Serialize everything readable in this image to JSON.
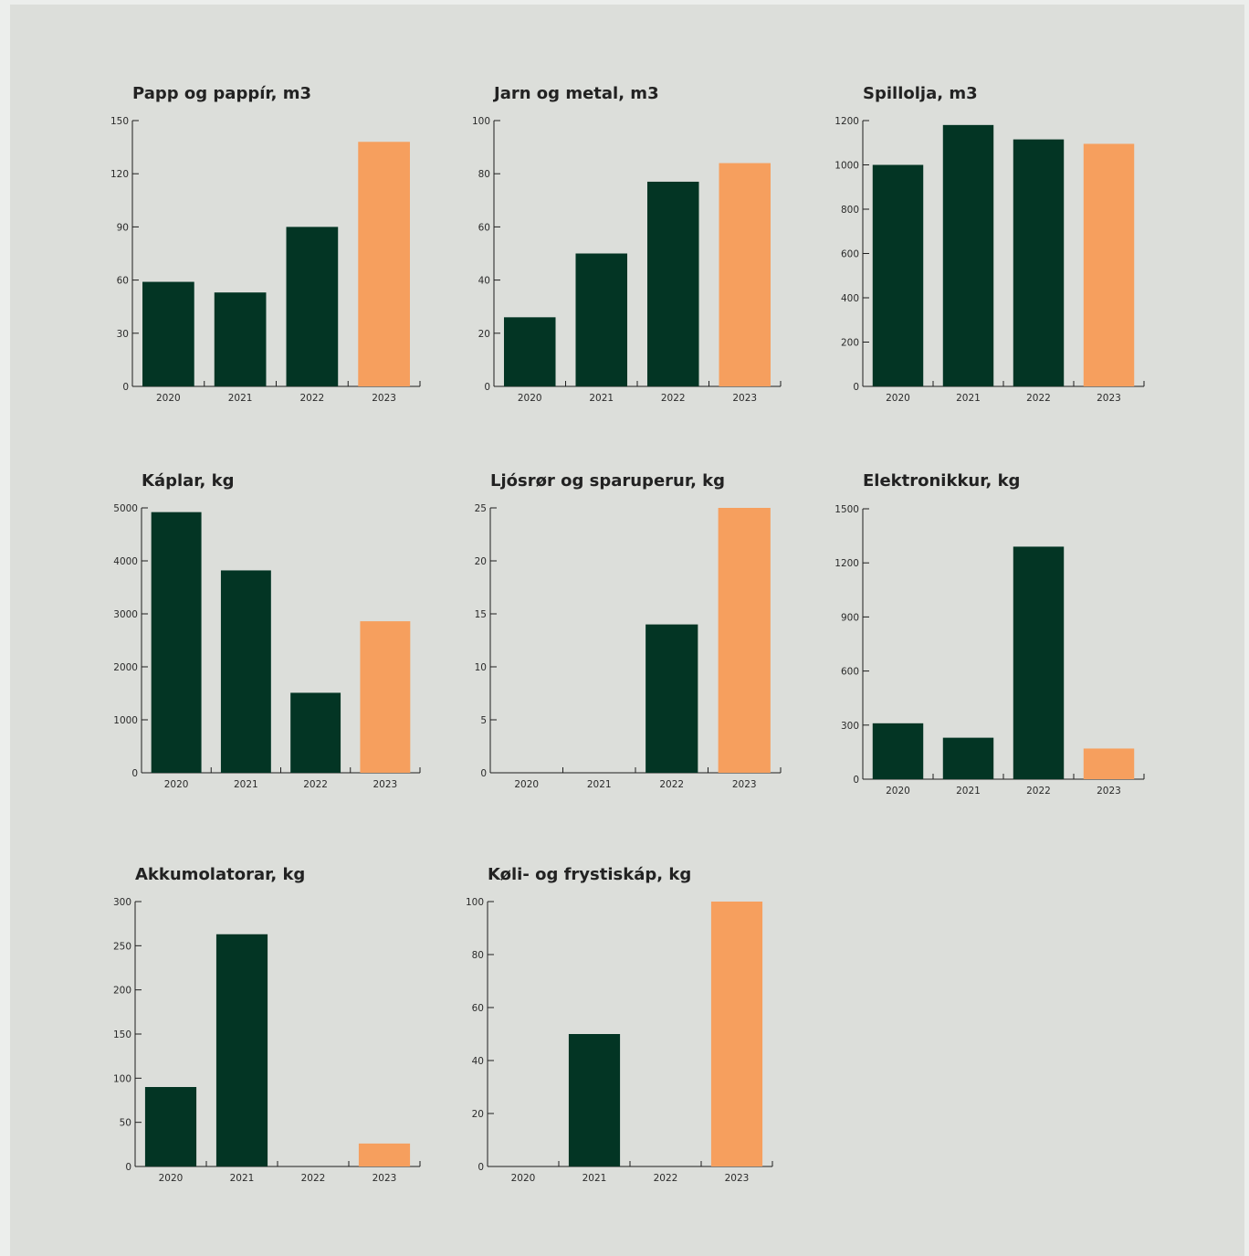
{
  "colors": {
    "bar": "#033524",
    "highlight": "#f69f5e",
    "axis": "#1e1e1e",
    "background": "#dcdeda"
  },
  "chart_data": [
    {
      "type": "bar",
      "title": "Papp og pappír, m3",
      "categories": [
        "2020",
        "2021",
        "2022",
        "2023"
      ],
      "values": [
        59,
        53,
        90,
        138
      ],
      "ylim": [
        0,
        150
      ],
      "yticks": [
        0,
        30,
        60,
        90,
        120,
        150
      ],
      "highlight": "2023"
    },
    {
      "type": "bar",
      "title": "Jarn og metal, m3",
      "categories": [
        "2020",
        "2021",
        "2022",
        "2023"
      ],
      "values": [
        26,
        50,
        77,
        84
      ],
      "ylim": [
        0,
        100
      ],
      "yticks": [
        0,
        20,
        40,
        60,
        80,
        100
      ],
      "highlight": "2023"
    },
    {
      "type": "bar",
      "title": "Spillolja, m3",
      "categories": [
        "2020",
        "2021",
        "2022",
        "2023"
      ],
      "values": [
        1000,
        1180,
        1115,
        1095
      ],
      "ylim": [
        0,
        1200
      ],
      "yticks": [
        0,
        200,
        400,
        600,
        800,
        1000,
        1200
      ],
      "highlight": "2023"
    },
    {
      "type": "bar",
      "title": "Káplar, kg",
      "categories": [
        "2020",
        "2021",
        "2022",
        "2023"
      ],
      "values": [
        4920,
        3820,
        1510,
        2860
      ],
      "ylim": [
        0,
        5000
      ],
      "yticks": [
        0,
        1000,
        2000,
        3000,
        4000,
        5000
      ],
      "highlight": "2023"
    },
    {
      "type": "bar",
      "title": "Ljósrør og sparuperur, kg",
      "categories": [
        "2020",
        "2021",
        "2022",
        "2023"
      ],
      "values": [
        0,
        0,
        14,
        25
      ],
      "ylim": [
        0,
        25
      ],
      "yticks": [
        0,
        5,
        10,
        15,
        20,
        25
      ],
      "highlight": "2023"
    },
    {
      "type": "bar",
      "title": "Elektronikkur, kg",
      "categories": [
        "2020",
        "2021",
        "2022",
        "2023"
      ],
      "values": [
        310,
        230,
        1290,
        170
      ],
      "ylim": [
        0,
        1500
      ],
      "yticks": [
        0,
        300,
        600,
        900,
        1200,
        1500
      ],
      "highlight": "2023"
    },
    {
      "type": "bar",
      "title": "Akkumolatorar, kg",
      "categories": [
        "2020",
        "2021",
        "2022",
        "2023"
      ],
      "values": [
        90,
        263,
        0,
        26
      ],
      "ylim": [
        0,
        300
      ],
      "yticks": [
        0,
        50,
        100,
        150,
        200,
        250,
        300
      ],
      "highlight": "2023"
    },
    {
      "type": "bar",
      "title": "Køli- og frystiskáp, kg",
      "categories": [
        "2020",
        "2021",
        "2022",
        "2023"
      ],
      "values": [
        0,
        50,
        0,
        100
      ],
      "ylim": [
        0,
        100
      ],
      "yticks": [
        0,
        20,
        40,
        60,
        80,
        100
      ],
      "highlight": "2023"
    }
  ]
}
